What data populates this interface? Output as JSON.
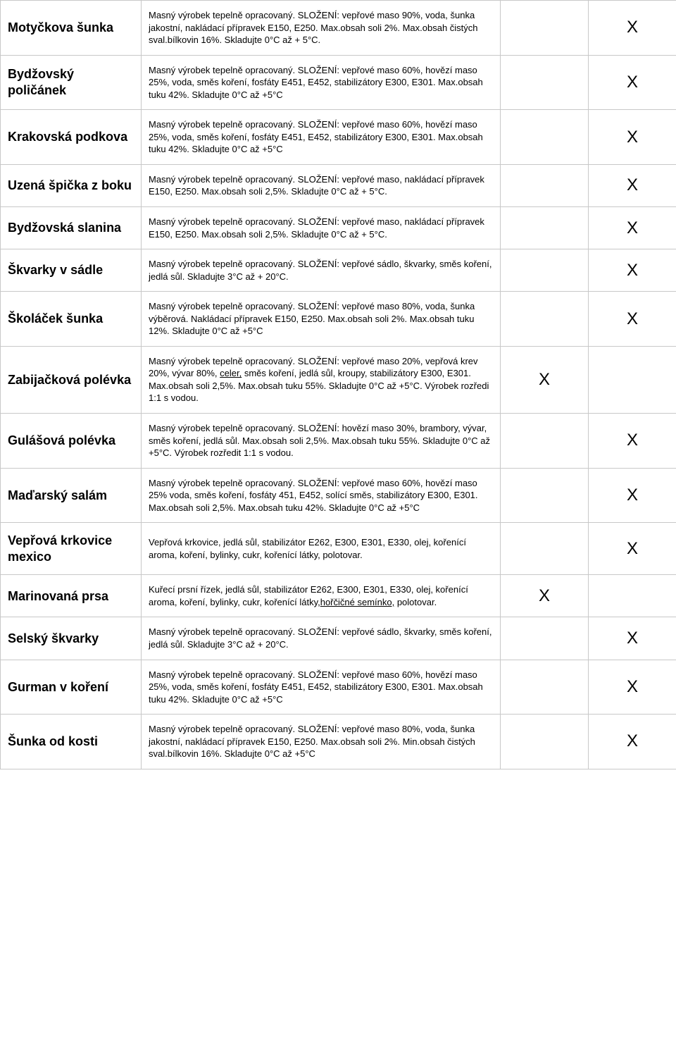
{
  "columns": {
    "name_width": 200,
    "desc_width": 510,
    "mark_width": 125
  },
  "rows": [
    {
      "name": "Motyčkova šunka",
      "desc": "Masný výrobek tepelně opracovaný. SLOŽENÍ: vepřové maso 90%, voda, šunka jakostní, nakládací přípravek E150, E250. Max.obsah soli 2%. Max.obsah čistých sval.bílkovin 16%. Skladujte  0°C až + 5°C.",
      "col3": "",
      "col4": "X"
    },
    {
      "name": "Bydžovský poličánek",
      "desc": "Masný výrobek tepelně opracovaný. SLOŽENÍ: vepřové maso 60%, hovězí maso 25%, voda, směs koření, fosfáty E451, E452, stabilizátory E300, E301. Max.obsah tuku 42%. Skladujte 0°C až +5°C",
      "col3": "",
      "col4": "X"
    },
    {
      "name": "Krakovská podkova",
      "desc": "Masný výrobek tepelně opracovaný. SLOŽENÍ: vepřové maso 60%, hovězí maso 25%, voda, směs koření, fosfáty E451, E452, stabilizátory E300, E301. Max.obsah tuku 42%. Skladujte 0°C až +5°C",
      "col3": "",
      "col4": "X"
    },
    {
      "name": "Uzená špička z boku",
      "desc": "Masný výrobek tepelně opracovaný. SLOŽENÍ: vepřové maso, nakládací přípravek E150, E250. Max.obsah soli 2,5%. Skladujte  0°C až + 5°C.",
      "col3": "",
      "col4": "X"
    },
    {
      "name": "Bydžovská slanina",
      "desc": "Masný výrobek tepelně opracovaný. SLOŽENÍ: vepřové maso, nakládací přípravek E150, E250. Max.obsah soli 2,5%. Skladujte  0°C až + 5°C.",
      "col3": "",
      "col4": "X"
    },
    {
      "name": "Škvarky v sádle",
      "desc": "Masný výrobek tepelně opracovaný. SLOŽENÍ: vepřové sádlo, škvarky, směs koření, jedlá sůl. Skladujte 3°C až + 20°C.",
      "col3": "",
      "col4": "X"
    },
    {
      "name": "Školáček šunka",
      "desc": "Masný výrobek tepelně opracovaný. SLOŽENÍ: vepřové maso 80%, voda, šunka výběrová. Nakládací přípravek E150, E250. Max.obsah soli 2%. Max.obsah tuku 12%. Skladujte 0°C až +5°C",
      "col3": "",
      "col4": "X"
    },
    {
      "name": "Zabijačková polévka",
      "desc_html": "Masný výrobek tepelně opracovaný. SLOŽENÍ: vepřové maso 20%, vepřová krev 20%, vývar 80%, <span class=\"u\">celer,</span> směs koření, jedlá sůl, kroupy, stabilizátory E300, E301. Max.obsah soli 2,5%. Max.obsah tuku 55%. Skladujte 0°C až +5°C.  Výrobek rozředi 1:1 s vodou.",
      "col3": "X",
      "col4": ""
    },
    {
      "name": "Gulášová polévka",
      "desc": "Masný výrobek tepelně opracovaný. SLOŽENÍ: hovězí maso 30%, brambory, vývar, směs koření, jedlá sůl. Max.obsah soli 2,5%. Max.obsah tuku 55%. Skladujte 0°C až +5°C. Výrobek rozředit 1:1 s vodou.",
      "col3": "",
      "col4": "X"
    },
    {
      "name": "Maďarský salám",
      "desc": "Masný výrobek tepelně opracovaný. SLOŽENÍ: vepřové maso 60%, hovězí maso 25% voda, směs koření, fosfáty 451, E452, solící směs, stabilizátory E300, E301. Max.obsah soli 2,5%. Max.obsah tuku 42%. Skladujte 0°C až +5°C",
      "col3": "",
      "col4": "X"
    },
    {
      "name": "Vepřová krkovice mexico",
      "desc": "Vepřová krkovice, jedlá sůl, stabilizátor E262, E300, E301, E330, olej, kořenící aroma, koření, bylinky, cukr, kořenící látky, polotovar.",
      "col3": "",
      "col4": "X"
    },
    {
      "name": "Marinovaná prsa",
      "desc_html": "Kuřecí prsní řízek, jedlá sůl, stabilizátor E262, E300, E301, E330, olej, kořenící aroma, koření, bylinky, cukr, kořenící látky,<span class=\"u\">hořčičné semínko,</span> polotovar.",
      "col3": "X",
      "col4": ""
    },
    {
      "name": "Selský škvarky",
      "desc": "Masný výrobek tepelně opracovaný. SLOŽENÍ: vepřové sádlo, škvarky, směs koření, jedlá sůl. Skladujte 3°C až + 20°C.",
      "col3": "",
      "col4": "X"
    },
    {
      "name": "Gurman v koření",
      "desc": "Masný výrobek tepelně opracovaný. SLOŽENÍ: vepřové maso 60%, hovězí maso 25%, voda, směs koření, fosfáty E451, E452, stabilizátory E300, E301. Max.obsah tuku 42%. Skladujte 0°C až +5°C",
      "col3": "",
      "col4": "X"
    },
    {
      "name": "Šunka od kosti",
      "desc": "Masný výrobek tepelně opracovaný. SLOŽENÍ: vepřové maso 80%, voda, šunka jakostní, nakládací přípravek E150, E250. Max.obsah soli 2%. Min.obsah čistých sval.bílkovin 16%. Skladujte 0°C až +5°C",
      "col3": "",
      "col4": "X"
    }
  ]
}
